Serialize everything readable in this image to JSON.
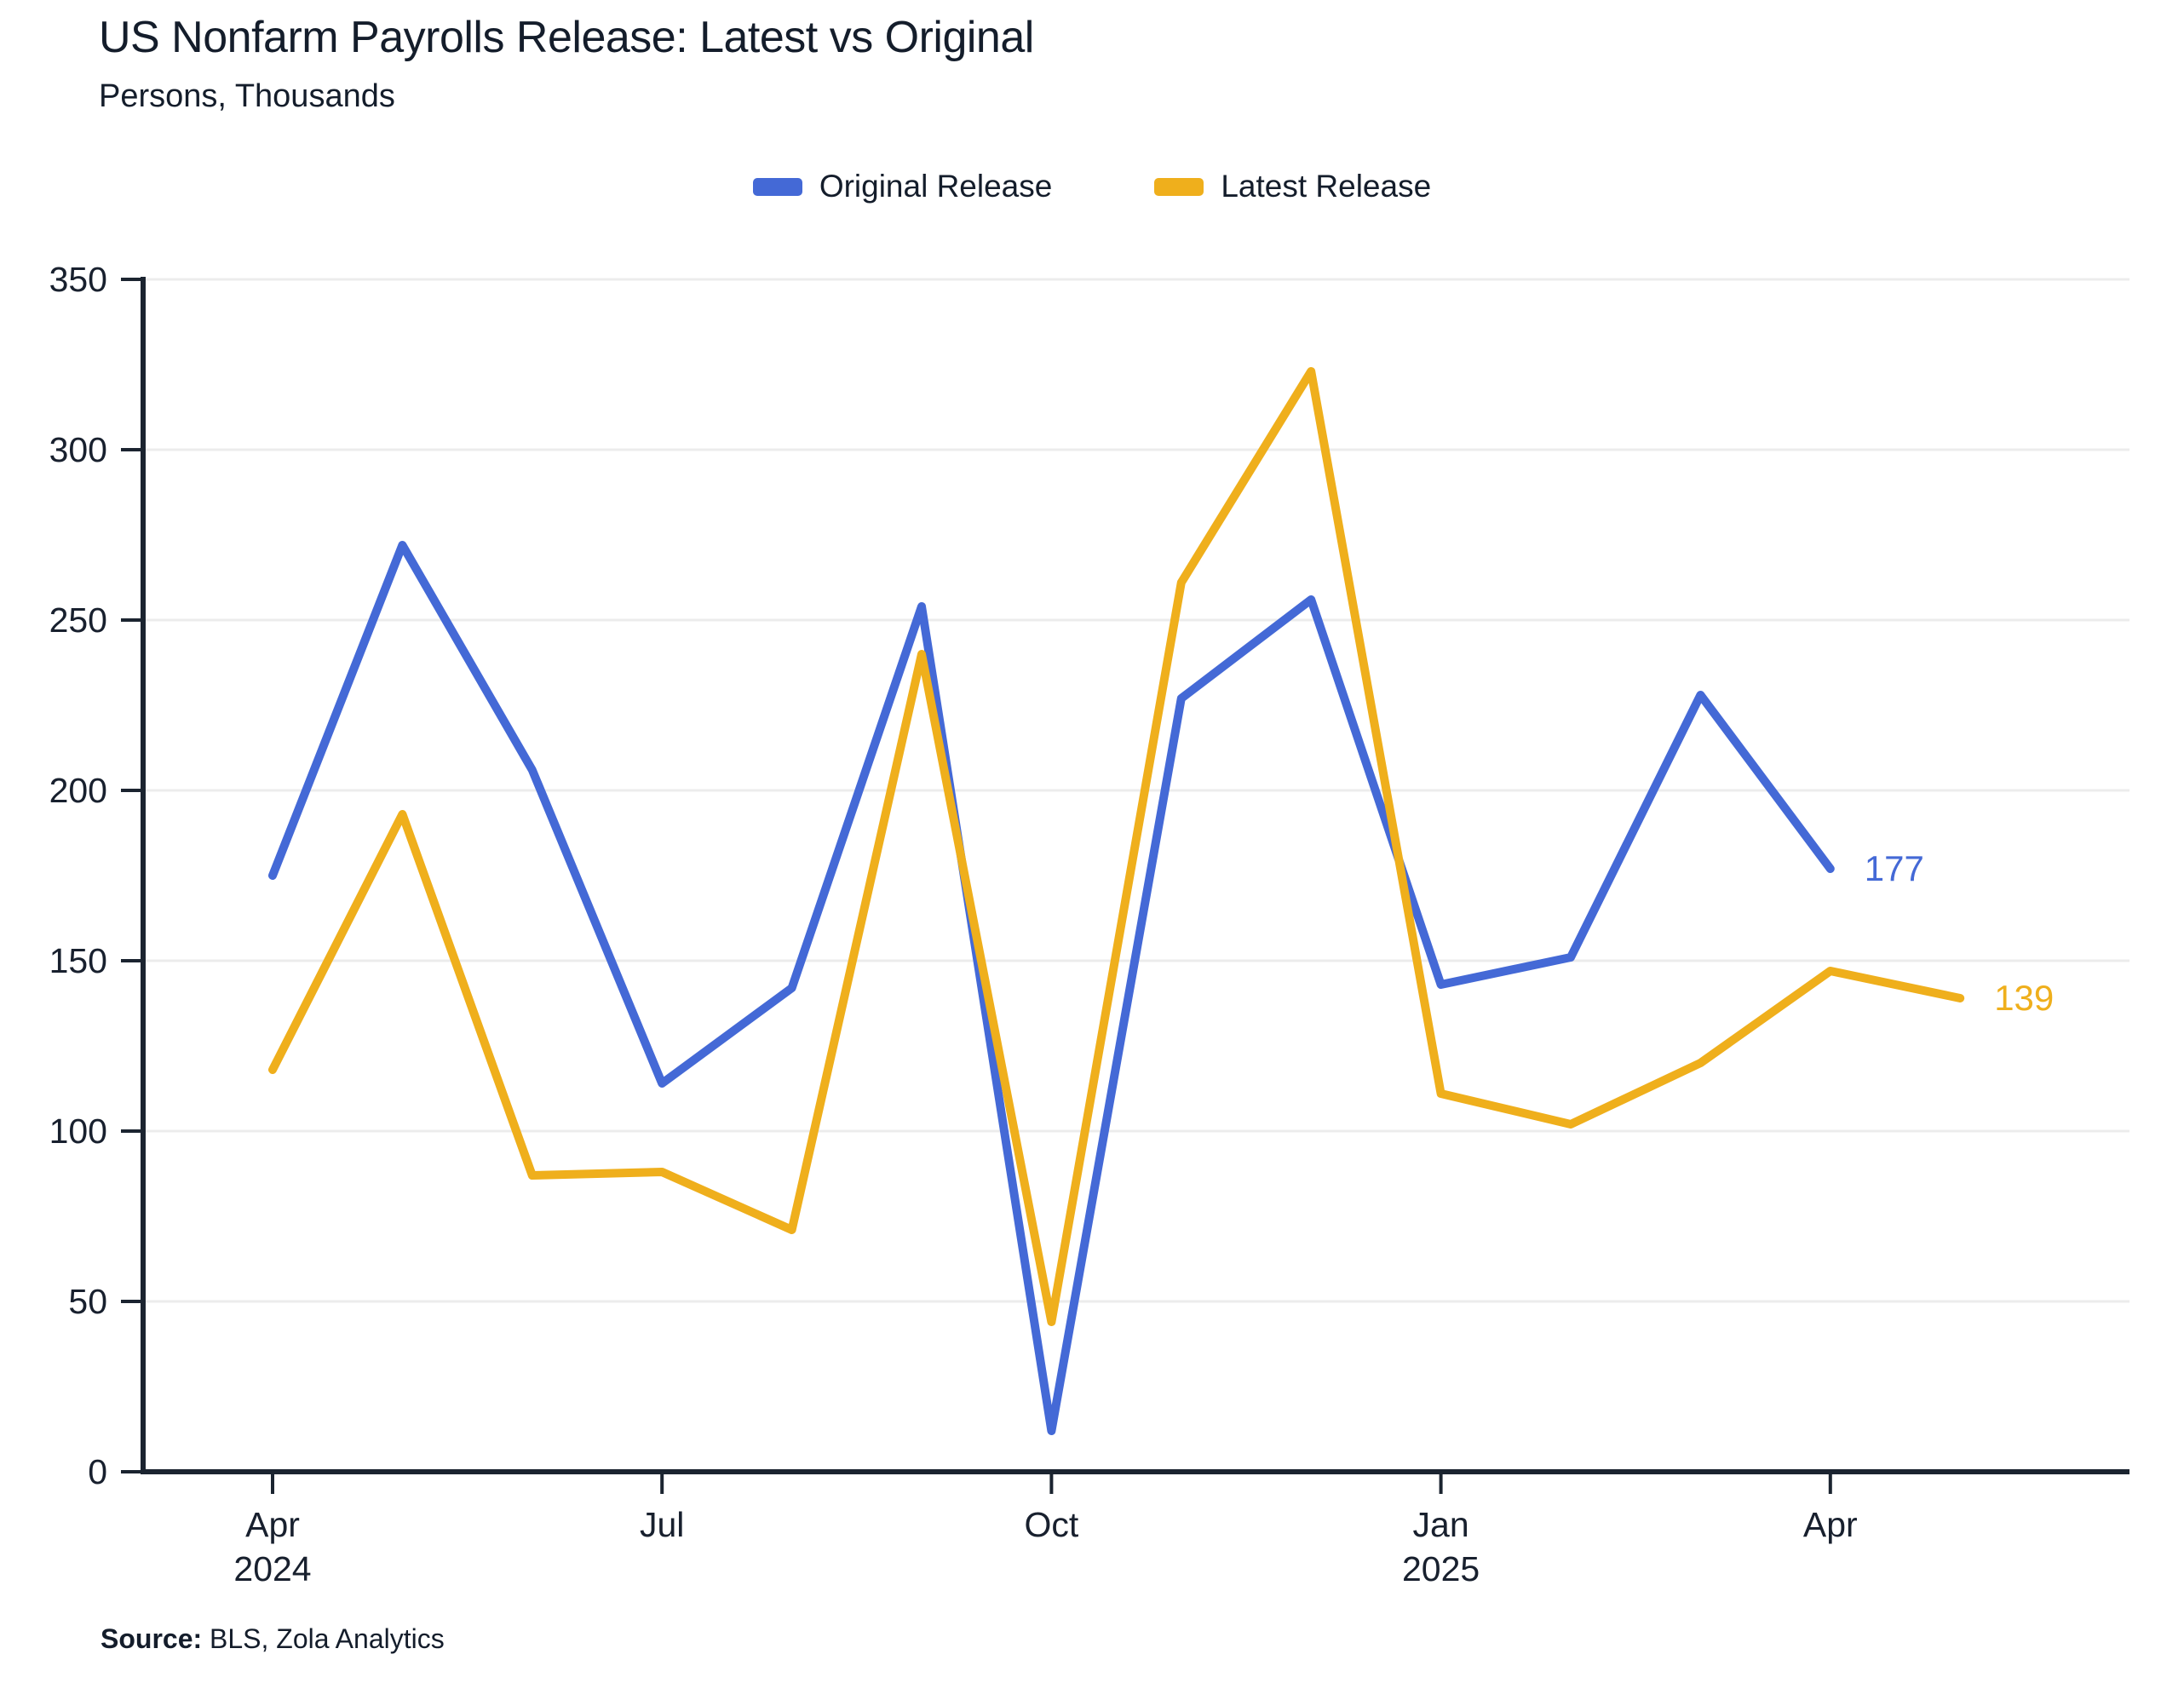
{
  "title": "US Nonfarm Payrolls Release: Latest vs Original",
  "subtitle": "Persons, Thousands",
  "legend": {
    "items": [
      {
        "label": "Original Release",
        "color": "#4469D6"
      },
      {
        "label": "Latest Release",
        "color": "#EFAF1C"
      }
    ]
  },
  "source": {
    "label": "Source:",
    "text": " BLS, Zola Analytics"
  },
  "colors": {
    "axis": "#1B2430",
    "text": "#18202E",
    "grid": "#ECECEC",
    "original_series": "#4469D6",
    "latest_series": "#EFAF1C"
  },
  "chart_data": {
    "type": "line",
    "title": "US Nonfarm Payrolls Release: Latest vs Original",
    "ylabel": "Persons, Thousands",
    "xlabel": "",
    "grid": true,
    "legend_position": "top-center",
    "ylim": [
      0,
      350
    ],
    "y_ticks": [
      0,
      50,
      100,
      150,
      200,
      250,
      300,
      350
    ],
    "x": [
      "Apr 2024",
      "May 2024",
      "Jun 2024",
      "Jul 2024",
      "Aug 2024",
      "Sep 2024",
      "Oct 2024",
      "Nov 2024",
      "Dec 2024",
      "Jan 2025",
      "Feb 2025",
      "Mar 2025",
      "Apr 2025",
      "May 2025"
    ],
    "x_ticks": [
      {
        "index": 0,
        "line1": "Apr",
        "line2": "2024"
      },
      {
        "index": 3,
        "line1": "Jul"
      },
      {
        "index": 6,
        "line1": "Oct"
      },
      {
        "index": 9,
        "line1": "Jan",
        "line2": "2025"
      },
      {
        "index": 12,
        "line1": "Apr"
      }
    ],
    "series": [
      {
        "name": "Original Release",
        "color": "#4469D6",
        "values": [
          175,
          272,
          206,
          114,
          142,
          254,
          12,
          227,
          256,
          143,
          151,
          228,
          177
        ],
        "end_label": "177"
      },
      {
        "name": "Latest Release",
        "color": "#EFAF1C",
        "values": [
          118,
          193,
          87,
          88,
          71,
          240,
          44,
          261,
          323,
          111,
          102,
          120,
          147,
          139
        ],
        "end_label": "139"
      }
    ]
  }
}
